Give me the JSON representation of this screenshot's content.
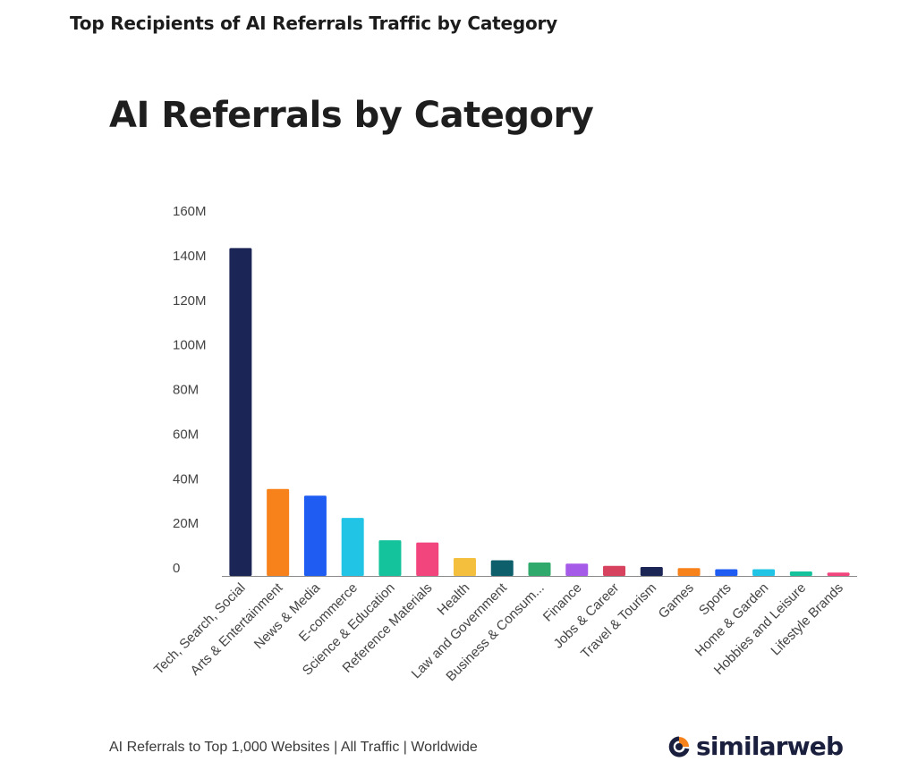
{
  "page": {
    "heading": "Top Recipients of AI Referrals Traffic by Category"
  },
  "footer": {
    "note": "AI Referrals to Top 1,000 Websites | All Traffic | Worldwide",
    "brand": "similarweb",
    "brand_icon": "similarweb-logo-icon"
  },
  "chart_data": {
    "type": "bar",
    "title": "AI Referrals by Category",
    "xlabel": "",
    "ylabel": "",
    "ylim": [
      0,
      160
    ],
    "yticks": [
      0,
      20,
      40,
      60,
      80,
      100,
      120,
      140,
      160
    ],
    "ytick_labels": [
      "0",
      "20M",
      "40M",
      "60M",
      "80M",
      "100M",
      "120M",
      "140M",
      "160M"
    ],
    "grid": false,
    "legend": "none",
    "categories": [
      "Tech, Search, Social",
      "Arts & Entertainment",
      "News & Media",
      "E-commerce",
      "Science & Education",
      "Reference Materials",
      "Health",
      "Law and Government",
      "Business & Consum...",
      "Finance",
      "Jobs & Career",
      "Travel & Tourism",
      "Games",
      "Sports",
      "Home & Garden",
      "Hobbies and Leisure",
      "Lifestyle Brands"
    ],
    "values": [
      147,
      39,
      36,
      26,
      16,
      15,
      8,
      7,
      6,
      5.5,
      4.5,
      4,
      3.5,
      3,
      3,
      2,
      1.5
    ],
    "colors": [
      "#1b2556",
      "#f7821b",
      "#1f5cf2",
      "#22c4e6",
      "#14c39c",
      "#f2457e",
      "#f4bf3c",
      "#0c5f6b",
      "#2faa6c",
      "#a55ae8",
      "#d7425e",
      "#1b2556",
      "#f7821b",
      "#1f5cf2",
      "#22c4e6",
      "#14c39c",
      "#f2457e"
    ]
  }
}
